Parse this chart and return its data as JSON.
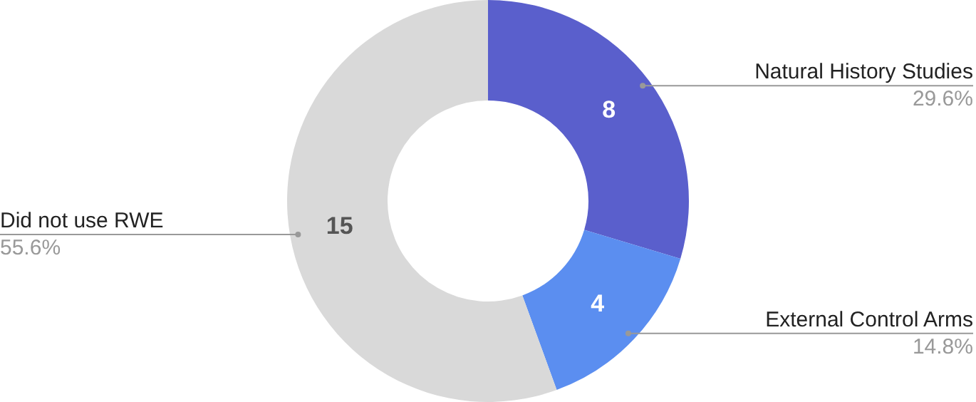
{
  "chart_data": {
    "type": "donut",
    "categories": [
      "Natural History Studies",
      "External Control Arms",
      "Did not use RWE"
    ],
    "values": [
      8,
      4,
      15
    ],
    "colors": [
      "#5a5fcc",
      "#5b8ef0",
      "#d9d9d9"
    ],
    "data_labels": true,
    "annotations": [
      {
        "text": "29.6%",
        "x": "Natural History Studies"
      },
      {
        "text": "14.8%",
        "x": "External Control Arms"
      },
      {
        "text": "55.6%",
        "x": "Did not use RWE"
      }
    ],
    "legend": false
  }
}
